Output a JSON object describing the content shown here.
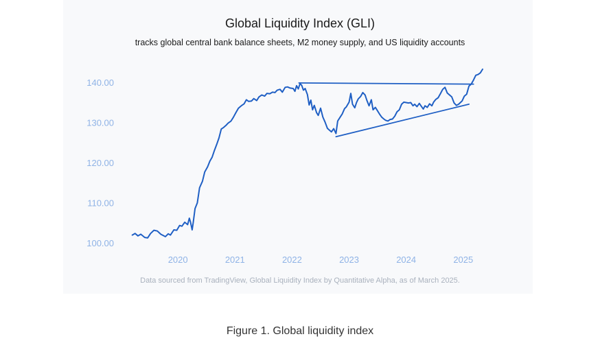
{
  "figure_caption": "Figure 1. Global liquidity index",
  "source_note": "Data sourced from TradingView, Global Liquidity Index by Quantitative Alpha, as of March 2025.",
  "colors": {
    "line": "#1f5fc4",
    "tick": "#8fb3e6",
    "card": "#f8f9fb"
  },
  "chart_data": {
    "type": "line",
    "title": "Global Liquidity Index (GLI)",
    "subtitle": "tracks global central bank balance sheets, M2 money supply, and US liquidity  accounts",
    "xlabel": "",
    "ylabel": "",
    "grid": false,
    "legend": "none",
    "xlim": [
      2019.12,
      2025.52
    ],
    "ylim": [
      98,
      145
    ],
    "yticks": [
      100,
      110,
      120,
      130,
      140
    ],
    "ytick_labels": [
      "100.00",
      "110.00",
      "120.00",
      "130.00",
      "140.00"
    ],
    "xticks": [
      2020,
      2021,
      2022,
      2023,
      2024,
      2025
    ],
    "xtick_labels": [
      "2020",
      "2021",
      "2022",
      "2023",
      "2024",
      "2025"
    ],
    "series": [
      {
        "values": [
          [
            2019.2,
            102.0
          ],
          [
            2019.25,
            102.4
          ],
          [
            2019.3,
            101.8
          ],
          [
            2019.35,
            102.2
          ],
          [
            2019.42,
            101.4
          ],
          [
            2019.47,
            101.3
          ],
          [
            2019.52,
            102.4
          ],
          [
            2019.58,
            103.2
          ],
          [
            2019.64,
            103.0
          ],
          [
            2019.7,
            102.2
          ],
          [
            2019.78,
            101.6
          ],
          [
            2019.83,
            102.3
          ],
          [
            2019.87,
            102.0
          ],
          [
            2019.93,
            103.3
          ],
          [
            2019.98,
            103.2
          ],
          [
            2020.03,
            104.4
          ],
          [
            2020.07,
            104.2
          ],
          [
            2020.12,
            105.2
          ],
          [
            2020.17,
            104.6
          ],
          [
            2020.2,
            106.2
          ],
          [
            2020.22,
            105.3
          ],
          [
            2020.25,
            103.3
          ],
          [
            2020.27,
            105.3
          ],
          [
            2020.3,
            108.6
          ],
          [
            2020.34,
            110.0
          ],
          [
            2020.38,
            113.8
          ],
          [
            2020.43,
            115.4
          ],
          [
            2020.47,
            117.7
          ],
          [
            2020.52,
            119.0
          ],
          [
            2020.56,
            120.4
          ],
          [
            2020.6,
            121.4
          ],
          [
            2020.64,
            123.1
          ],
          [
            2020.68,
            124.6
          ],
          [
            2020.72,
            126.2
          ],
          [
            2020.76,
            128.4
          ],
          [
            2020.8,
            128.8
          ],
          [
            2020.84,
            129.3
          ],
          [
            2020.88,
            129.9
          ],
          [
            2020.93,
            130.4
          ],
          [
            2020.97,
            131.3
          ],
          [
            2021.02,
            132.6
          ],
          [
            2021.06,
            133.6
          ],
          [
            2021.11,
            134.2
          ],
          [
            2021.16,
            134.7
          ],
          [
            2021.2,
            135.7
          ],
          [
            2021.24,
            135.3
          ],
          [
            2021.29,
            135.4
          ],
          [
            2021.33,
            136.0
          ],
          [
            2021.38,
            135.5
          ],
          [
            2021.42,
            136.4
          ],
          [
            2021.47,
            136.9
          ],
          [
            2021.52,
            136.6
          ],
          [
            2021.56,
            137.3
          ],
          [
            2021.61,
            137.2
          ],
          [
            2021.66,
            137.6
          ],
          [
            2021.7,
            137.5
          ],
          [
            2021.74,
            138.1
          ],
          [
            2021.79,
            138.3
          ],
          [
            2021.83,
            137.6
          ],
          [
            2021.88,
            138.8
          ],
          [
            2021.92,
            138.9
          ],
          [
            2021.97,
            138.6
          ],
          [
            2022.02,
            138.5
          ],
          [
            2022.05,
            137.8
          ],
          [
            2022.08,
            139.2
          ],
          [
            2022.11,
            138.4
          ],
          [
            2022.14,
            139.7
          ],
          [
            2022.17,
            139.3
          ],
          [
            2022.2,
            138.1
          ],
          [
            2022.23,
            138.5
          ],
          [
            2022.27,
            137.0
          ],
          [
            2022.3,
            134.4
          ],
          [
            2022.33,
            135.6
          ],
          [
            2022.36,
            133.2
          ],
          [
            2022.39,
            134.3
          ],
          [
            2022.43,
            132.5
          ],
          [
            2022.46,
            131.8
          ],
          [
            2022.5,
            133.6
          ],
          [
            2022.54,
            131.4
          ],
          [
            2022.58,
            130.1
          ],
          [
            2022.62,
            128.6
          ],
          [
            2022.65,
            128.2
          ],
          [
            2022.69,
            127.7
          ],
          [
            2022.73,
            128.5
          ],
          [
            2022.77,
            127.3
          ],
          [
            2022.8,
            130.4
          ],
          [
            2022.84,
            131.3
          ],
          [
            2022.88,
            132.2
          ],
          [
            2022.92,
            133.5
          ],
          [
            2022.95,
            133.9
          ],
          [
            2023.0,
            135.1
          ],
          [
            2023.03,
            137.3
          ],
          [
            2023.06,
            134.6
          ],
          [
            2023.1,
            133.7
          ],
          [
            2023.13,
            135.0
          ],
          [
            2023.16,
            135.9
          ],
          [
            2023.2,
            136.5
          ],
          [
            2023.24,
            137.5
          ],
          [
            2023.28,
            136.9
          ],
          [
            2023.31,
            135.6
          ],
          [
            2023.35,
            134.2
          ],
          [
            2023.39,
            135.7
          ],
          [
            2023.42,
            133.2
          ],
          [
            2023.46,
            133.8
          ],
          [
            2023.5,
            132.9
          ],
          [
            2023.54,
            132.0
          ],
          [
            2023.57,
            131.4
          ],
          [
            2023.61,
            130.9
          ],
          [
            2023.64,
            130.6
          ],
          [
            2023.68,
            130.4
          ],
          [
            2023.72,
            130.8
          ],
          [
            2023.76,
            130.9
          ],
          [
            2023.8,
            131.6
          ],
          [
            2023.84,
            132.7
          ],
          [
            2023.88,
            133.2
          ],
          [
            2023.92,
            134.6
          ],
          [
            2023.96,
            135.1
          ],
          [
            2024.0,
            135.0
          ],
          [
            2024.04,
            134.9
          ],
          [
            2024.08,
            135.0
          ],
          [
            2024.12,
            134.2
          ],
          [
            2024.15,
            134.6
          ],
          [
            2024.19,
            134.0
          ],
          [
            2024.23,
            134.8
          ],
          [
            2024.27,
            134.0
          ],
          [
            2024.3,
            133.4
          ],
          [
            2024.33,
            134.2
          ],
          [
            2024.37,
            133.8
          ],
          [
            2024.41,
            134.7
          ],
          [
            2024.45,
            134.2
          ],
          [
            2024.48,
            135.1
          ],
          [
            2024.52,
            135.8
          ],
          [
            2024.56,
            136.2
          ],
          [
            2024.6,
            137.2
          ],
          [
            2024.64,
            138.3
          ],
          [
            2024.68,
            138.8
          ],
          [
            2024.72,
            137.4
          ],
          [
            2024.76,
            136.9
          ],
          [
            2024.8,
            136.4
          ],
          [
            2024.84,
            134.9
          ],
          [
            2024.88,
            134.3
          ],
          [
            2024.92,
            134.6
          ],
          [
            2024.95,
            135.0
          ],
          [
            2024.98,
            135.4
          ],
          [
            2025.02,
            136.6
          ],
          [
            2025.06,
            137.1
          ],
          [
            2025.1,
            139.1
          ],
          [
            2025.14,
            139.6
          ],
          [
            2025.18,
            140.6
          ],
          [
            2025.22,
            141.8
          ],
          [
            2025.26,
            142.0
          ],
          [
            2025.3,
            142.4
          ],
          [
            2025.34,
            143.3
          ]
        ]
      }
    ],
    "annotations": [
      {
        "type": "trendline",
        "from": [
          2022.12,
          139.9
        ],
        "to": [
          2025.18,
          139.6
        ]
      },
      {
        "type": "trendline",
        "from": [
          2022.77,
          126.5
        ],
        "to": [
          2025.1,
          134.6
        ]
      }
    ]
  }
}
